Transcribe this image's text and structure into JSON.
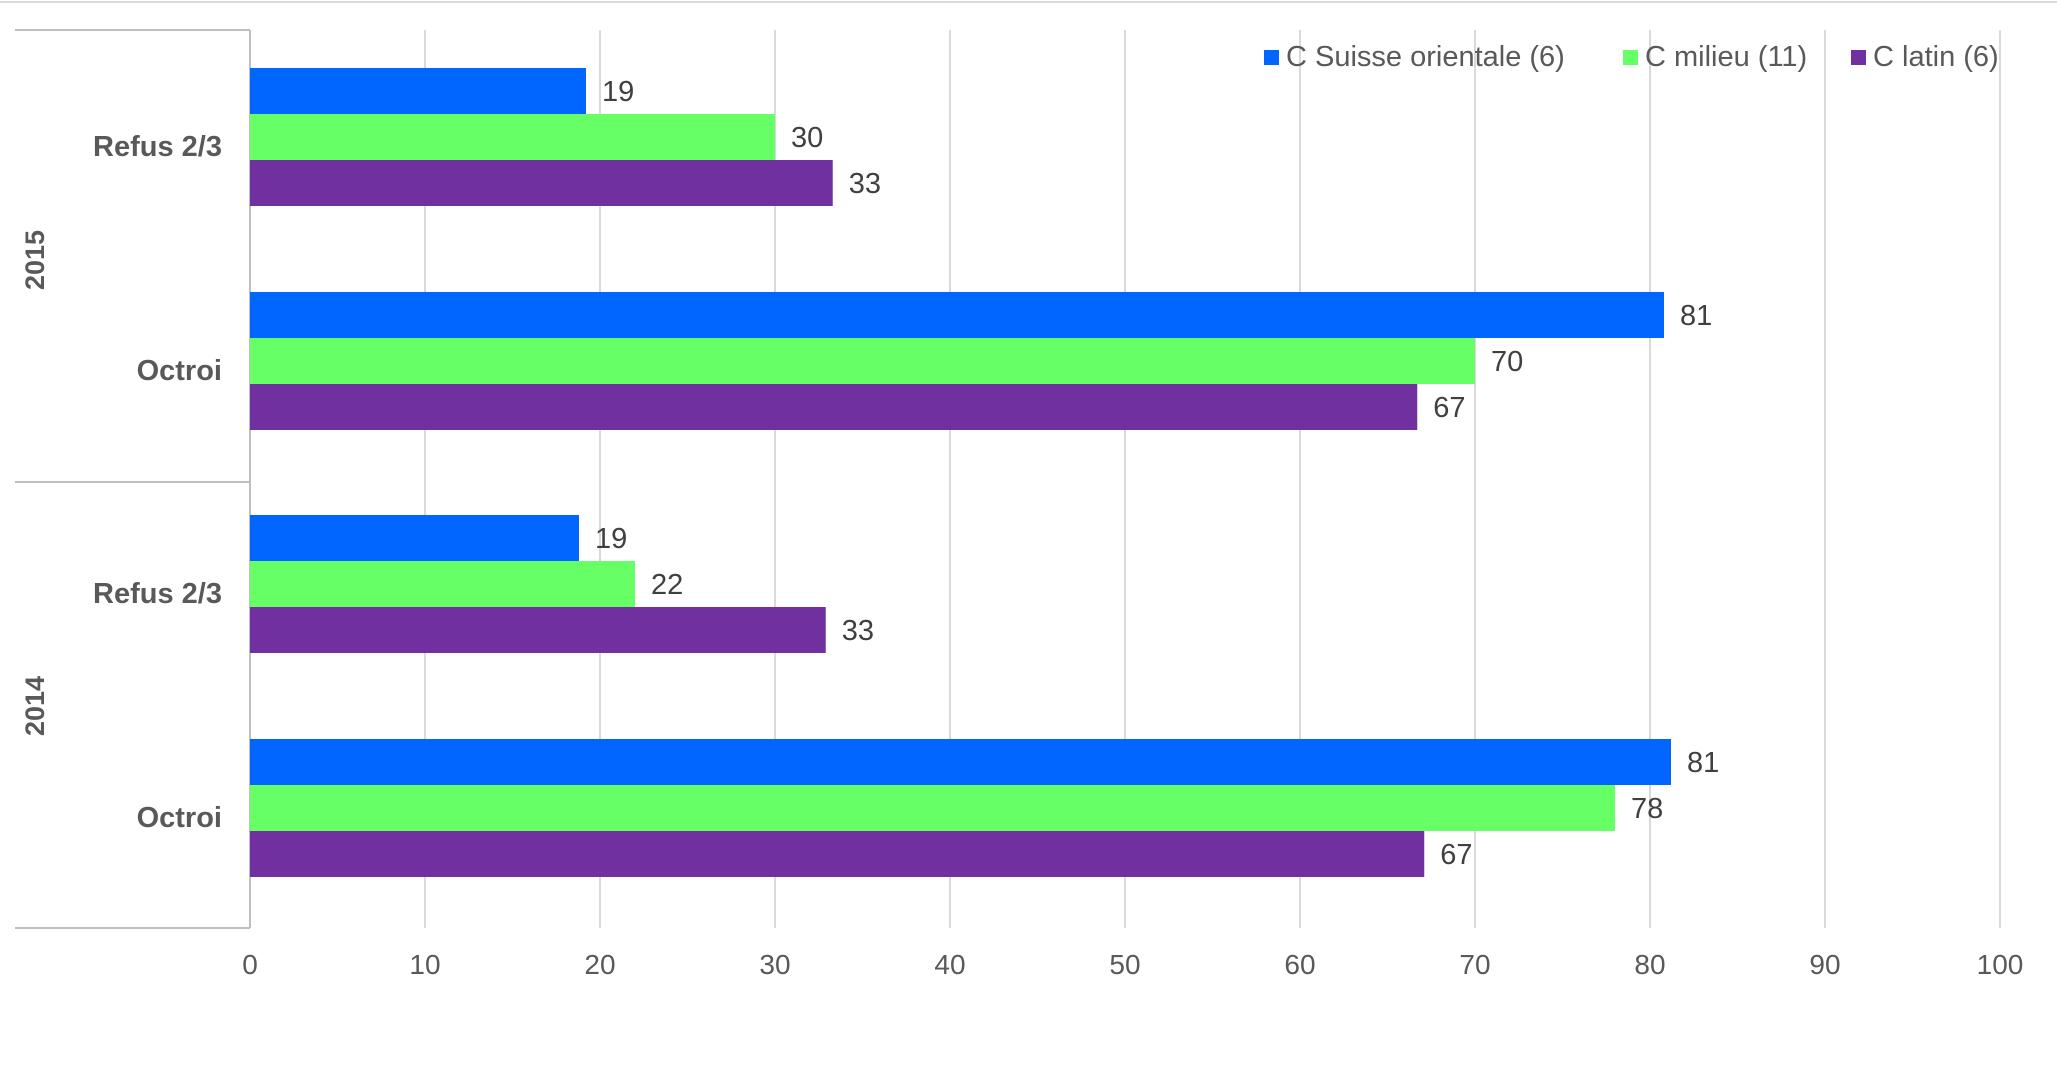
{
  "colors": {
    "background": "#ffffff",
    "grid": "#d9d9d9",
    "axis_line": "#bfbfbf",
    "tick_text": "#595959",
    "category_text": "#595959",
    "data_label_text": "#404040"
  },
  "chart_data": {
    "type": "bar",
    "orientation": "horizontal",
    "title": "",
    "xlabel": "",
    "ylabel": "",
    "xlim": [
      0,
      100
    ],
    "x_ticks": [
      0,
      10,
      20,
      30,
      40,
      50,
      60,
      70,
      80,
      90,
      100
    ],
    "grid": true,
    "legend_position": "top-right",
    "groups": [
      {
        "year": "2015",
        "categories": [
          "Refus 2/3",
          "Octroi"
        ]
      },
      {
        "year": "2014",
        "categories": [
          "Refus 2/3",
          "Octroi"
        ]
      }
    ],
    "categories": [
      "2015 Refus 2/3",
      "2015 Octroi",
      "2014 Refus 2/3",
      "2014 Octroi"
    ],
    "series": [
      {
        "name": "C Suisse orientale (6)",
        "color": "#0066ff",
        "values": [
          19,
          81,
          19,
          81
        ],
        "exact_values": [
          19.2,
          80.8,
          18.8,
          81.2
        ]
      },
      {
        "name": "C milieu (11)",
        "color": "#66ff66",
        "values": [
          30,
          70,
          22,
          78
        ],
        "exact_values": [
          30,
          70,
          22,
          78
        ]
      },
      {
        "name": "C latin (6)",
        "color": "#7030a0",
        "values": [
          33,
          67,
          33,
          67
        ],
        "exact_values": [
          33.3,
          66.7,
          32.9,
          67.1
        ]
      }
    ]
  }
}
